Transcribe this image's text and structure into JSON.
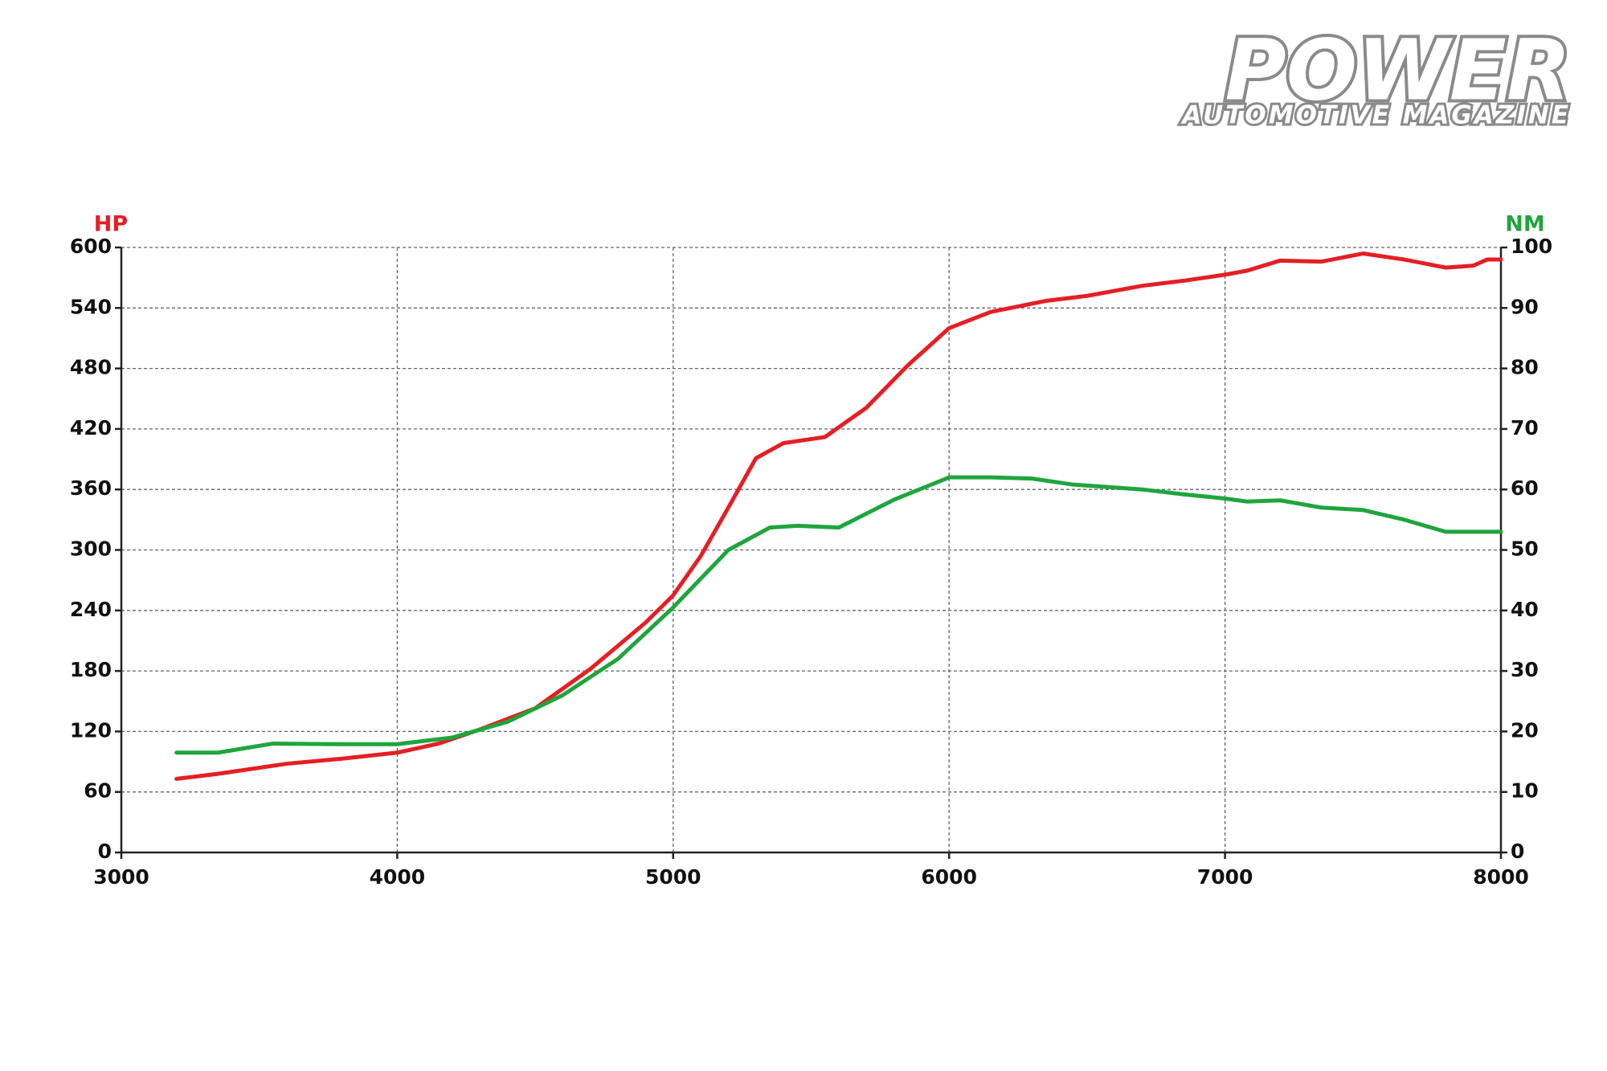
{
  "logo_title": "POWER",
  "logo_subtitle": "AUTOMOTIVE MAGAZINE",
  "chart_data": {
    "type": "line",
    "y_label": "HP",
    "y2_label": "NM",
    "xlim": [
      3000,
      8000
    ],
    "xticks": [
      3000,
      4000,
      5000,
      6000,
      7000,
      8000
    ],
    "ylim": [
      0,
      600
    ],
    "yticks": [
      0,
      60,
      120,
      180,
      240,
      300,
      360,
      420,
      480,
      540,
      600
    ],
    "y2lim": [
      0,
      100
    ],
    "y2ticks": [
      0,
      10,
      20,
      30,
      40,
      50,
      60,
      70,
      80,
      90,
      100
    ],
    "grid": true,
    "series": [
      {
        "name": "HP",
        "color": "#e41f25",
        "x": [
          3200,
          3350,
          3600,
          3800,
          4000,
          4150,
          4300,
          4500,
          4700,
          4900,
          5000,
          5100,
          5200,
          5300,
          5400,
          5550,
          5700,
          5850,
          6000,
          6150,
          6350,
          6500,
          6700,
          6850,
          7000,
          7080,
          7200,
          7350,
          7500,
          7650,
          7800,
          7900,
          7950,
          8000
        ],
        "values": [
          73,
          78,
          88,
          93,
          99,
          108,
          122,
          143,
          182,
          228,
          255,
          294,
          342,
          391,
          406,
          412,
          441,
          483,
          520,
          536,
          547,
          552,
          562,
          567,
          573,
          577,
          587,
          586,
          594,
          588,
          580,
          582,
          588,
          588
        ]
      },
      {
        "name": "NM",
        "color": "#1fa53d",
        "axis": "y2",
        "x": [
          3200,
          3350,
          3550,
          3800,
          4000,
          4200,
          4400,
          4600,
          4800,
          5000,
          5200,
          5350,
          5450,
          5600,
          5800,
          6000,
          6150,
          6300,
          6450,
          6700,
          6850,
          7000,
          7080,
          7200,
          7350,
          7500,
          7650,
          7800,
          8000
        ],
        "values": [
          16.5,
          16.5,
          18,
          17.9,
          17.9,
          19,
          21.6,
          26,
          32,
          40.5,
          50,
          53.7,
          54,
          53.7,
          58.3,
          62,
          62,
          61.8,
          60.8,
          60,
          59.2,
          58.5,
          58,
          58.2,
          57,
          56.6,
          55,
          53,
          53
        ]
      }
    ]
  }
}
